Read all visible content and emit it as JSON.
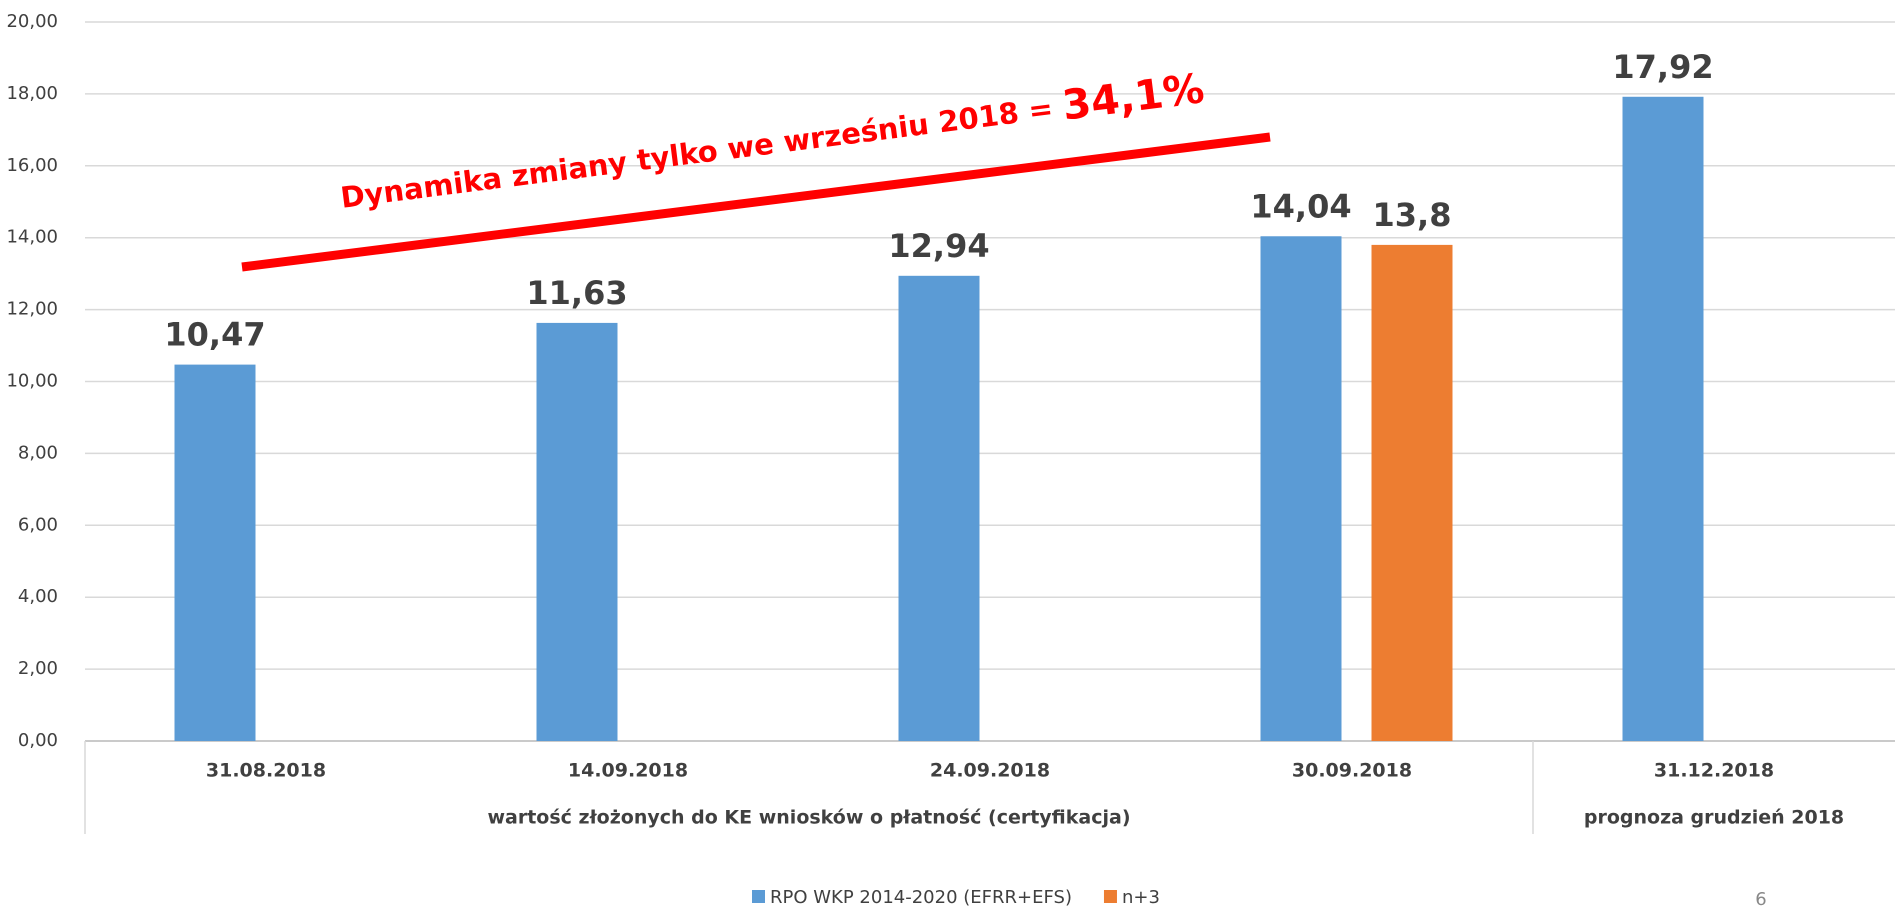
{
  "chart_data": {
    "type": "bar",
    "categories": [
      "31.08.2018",
      "14.09.2018",
      "24.09.2018",
      "30.09.2018",
      "31.12.2018"
    ],
    "groups": [
      {
        "label": "wartość złożonych do KE wniosków o płatność (certyfikacja)",
        "size": 4
      },
      {
        "label": "prognoza grudzień 2018",
        "size": 1
      }
    ],
    "series": [
      {
        "name": "RPO WKP 2014-2020 (EFRR+EFS)",
        "color": "#5b9bd5",
        "values": [
          10.47,
          11.63,
          12.94,
          14.04,
          17.92
        ],
        "value_labels": [
          "10,47",
          "11,63",
          "12,94",
          "14,04",
          "17,92"
        ]
      },
      {
        "name": "n+3",
        "color": "#ed7d31",
        "values": [
          null,
          null,
          null,
          13.8,
          null
        ],
        "value_labels": [
          null,
          null,
          null,
          "13,8",
          null
        ]
      }
    ],
    "ylim": [
      0,
      20
    ],
    "yticks": [
      {
        "value": 0,
        "label": "0,00"
      },
      {
        "value": 2,
        "label": "2,00"
      },
      {
        "value": 4,
        "label": "4,00"
      },
      {
        "value": 6,
        "label": "6,00"
      },
      {
        "value": 8,
        "label": "8,00"
      },
      {
        "value": 10,
        "label": "10,00"
      },
      {
        "value": 12,
        "label": "12,00"
      },
      {
        "value": 14,
        "label": "14,00"
      },
      {
        "value": 16,
        "label": "16,00"
      },
      {
        "value": 18,
        "label": "18,00"
      },
      {
        "value": 20,
        "label": "20,00"
      }
    ],
    "grid": true,
    "annotation": {
      "text": "Dynamika zmiany tylko we wrześniu 2018 = ",
      "highlight": "34,1%",
      "color": "#ff0000"
    },
    "page_number": "6"
  }
}
